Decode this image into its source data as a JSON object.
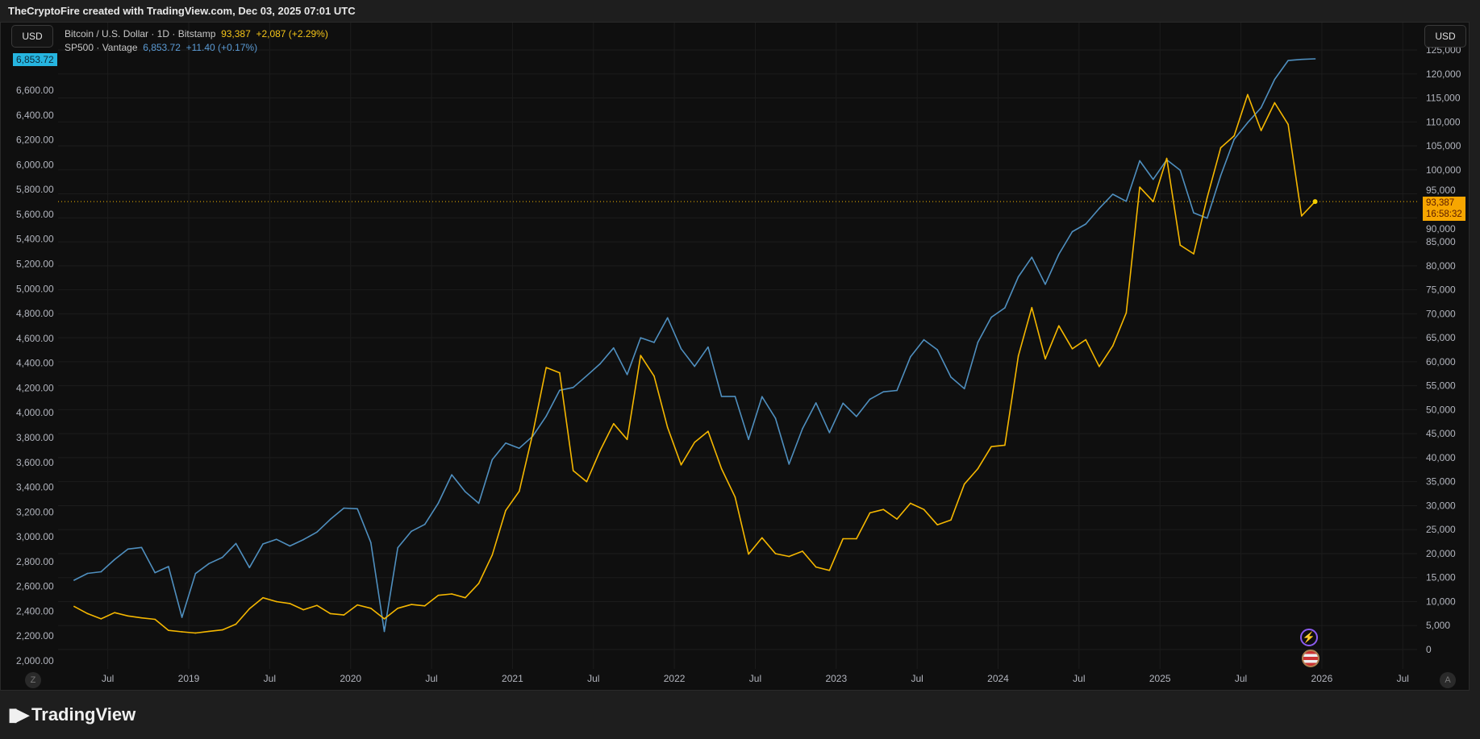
{
  "header": {
    "caption": "TheCryptoFire created with TradingView.com, Dec 03, 2025 07:01 UTC"
  },
  "currency_left": "USD",
  "currency_right": "USD",
  "legend": {
    "btc": {
      "name": "Bitcoin / U.S. Dollar · 1D · Bitstamp",
      "price": "93,387",
      "change": "+2,087 (+2.29%)"
    },
    "spx": {
      "name": "SP500 · Vantage",
      "price": "6,853.72",
      "change": "+11.40 (+0.17%)"
    }
  },
  "price_labels": {
    "spx_last": "6,853.72",
    "btc_last": "93,387",
    "btc_countdown": "16:58:32"
  },
  "buttons": {
    "left_scale": "Z",
    "right_scale": "A"
  },
  "branding": "TradingView",
  "colors": {
    "btc": "#f5b700",
    "spx": "#4f8fbf",
    "background": "#0f0f0f",
    "grid": "#1c1c1c"
  },
  "chart_data": {
    "type": "line",
    "x": [
      "2018-04",
      "2018-05",
      "2018-06",
      "2018-07",
      "2018-08",
      "2018-09",
      "2018-10",
      "2018-11",
      "2018-12",
      "2019-01",
      "2019-02",
      "2019-03",
      "2019-04",
      "2019-05",
      "2019-06",
      "2019-07",
      "2019-08",
      "2019-09",
      "2019-10",
      "2019-11",
      "2019-12",
      "2020-01",
      "2020-02",
      "2020-03",
      "2020-04",
      "2020-05",
      "2020-06",
      "2020-07",
      "2020-08",
      "2020-09",
      "2020-10",
      "2020-11",
      "2020-12",
      "2021-01",
      "2021-02",
      "2021-03",
      "2021-04",
      "2021-05",
      "2021-06",
      "2021-07",
      "2021-08",
      "2021-09",
      "2021-10",
      "2021-11",
      "2021-12",
      "2022-01",
      "2022-02",
      "2022-03",
      "2022-04",
      "2022-05",
      "2022-06",
      "2022-07",
      "2022-08",
      "2022-09",
      "2022-10",
      "2022-11",
      "2022-12",
      "2023-01",
      "2023-02",
      "2023-03",
      "2023-04",
      "2023-05",
      "2023-06",
      "2023-07",
      "2023-08",
      "2023-09",
      "2023-10",
      "2023-11",
      "2023-12",
      "2024-01",
      "2024-02",
      "2024-03",
      "2024-04",
      "2024-05",
      "2024-06",
      "2024-07",
      "2024-08",
      "2024-09",
      "2024-10",
      "2024-11",
      "2024-12",
      "2025-01",
      "2025-02",
      "2025-03",
      "2025-04",
      "2025-05",
      "2025-06",
      "2025-07",
      "2025-08",
      "2025-09",
      "2025-10",
      "2025-11",
      "2025-12"
    ],
    "series": [
      {
        "name": "Bitcoin / U.S. Dollar · 1D · Bitstamp",
        "axis": "right",
        "values": [
          9000,
          7500,
          6400,
          7700,
          7000,
          6600,
          6300,
          4000,
          3700,
          3450,
          3800,
          4100,
          5300,
          8500,
          10800,
          10000,
          9600,
          8300,
          9200,
          7500,
          7200,
          9300,
          8600,
          6400,
          8600,
          9400,
          9100,
          11300,
          11600,
          10800,
          13800,
          19700,
          29000,
          33000,
          45000,
          58800,
          57700,
          37300,
          35000,
          41500,
          47100,
          43800,
          61300,
          57000,
          46300,
          38500,
          43200,
          45500,
          37700,
          31800,
          19900,
          23300,
          20000,
          19400,
          20500,
          17200,
          16500,
          23100,
          23100,
          28500,
          29200,
          27200,
          30500,
          29200,
          26000,
          27000,
          34500,
          37700,
          42300,
          42600,
          61200,
          71300,
          60600,
          67500,
          62700,
          64600,
          59000,
          63300,
          70200,
          96400,
          93400,
          102400,
          84300,
          82500,
          94200,
          104600,
          107100,
          115700,
          108200,
          114000,
          109500,
          90400,
          93387
        ]
      },
      {
        "name": "SP500 · Vantage",
        "axis": "left",
        "values": [
          2650,
          2705,
          2718,
          2816,
          2901,
          2914,
          2711,
          2760,
          2351,
          2704,
          2784,
          2834,
          2946,
          2752,
          2942,
          2980,
          2926,
          2977,
          3038,
          3141,
          3231,
          3226,
          2954,
          2237,
          2912,
          3044,
          3100,
          3271,
          3500,
          3363,
          3270,
          3622,
          3756,
          3714,
          3811,
          3973,
          4181,
          4204,
          4298,
          4395,
          4523,
          4308,
          4605,
          4567,
          4766,
          4516,
          4374,
          4530,
          4132,
          4132,
          3785,
          4130,
          3955,
          3586,
          3872,
          4080,
          3840,
          4077,
          3970,
          4109,
          4169,
          4180,
          4450,
          4589,
          4508,
          4288,
          4194,
          4568,
          4770,
          4846,
          5096,
          5254,
          5036,
          5278,
          5460,
          5522,
          5648,
          5762,
          5705,
          6032,
          5882,
          6040,
          5955,
          5612,
          5569,
          5912,
          6205,
          6339,
          6460,
          6688,
          6840,
          6849,
          6853.72
        ]
      }
    ],
    "x_tick_labels": [
      "Jul",
      "2019",
      "Jul",
      "2020",
      "Jul",
      "2021",
      "Jul",
      "2022",
      "Jul",
      "2023",
      "Jul",
      "2024",
      "Jul",
      "2025",
      "Jul",
      "2026",
      "Jul"
    ],
    "y_right": {
      "ylim": [
        0,
        125000
      ],
      "ticks": [
        "0",
        "5,000",
        "10,000",
        "15,000",
        "20,000",
        "25,000",
        "30,000",
        "35,000",
        "40,000",
        "45,000",
        "50,000",
        "55,000",
        "60,000",
        "65,000",
        "70,000",
        "75,000",
        "80,000",
        "85,000",
        "90,000",
        "95,000",
        "100,000",
        "105,000",
        "110,000",
        "115,000",
        "120,000",
        "125,000"
      ]
    },
    "y_left": {
      "ylim": [
        2000,
        6800
      ],
      "ticks": [
        "2,000.00",
        "2,200.00",
        "2,400.00",
        "2,600.00",
        "2,800.00",
        "3,000.00",
        "3,200.00",
        "3,400.00",
        "3,600.00",
        "3,800.00",
        "4,000.00",
        "4,200.00",
        "4,400.00",
        "4,600.00",
        "4,800.00",
        "5,000.00",
        "5,200.00",
        "5,400.00",
        "5,600.00",
        "5,800.00",
        "6,000.00",
        "6,200.00",
        "6,400.00",
        "6,600.00"
      ]
    },
    "grid": true,
    "legend": "top-left"
  }
}
